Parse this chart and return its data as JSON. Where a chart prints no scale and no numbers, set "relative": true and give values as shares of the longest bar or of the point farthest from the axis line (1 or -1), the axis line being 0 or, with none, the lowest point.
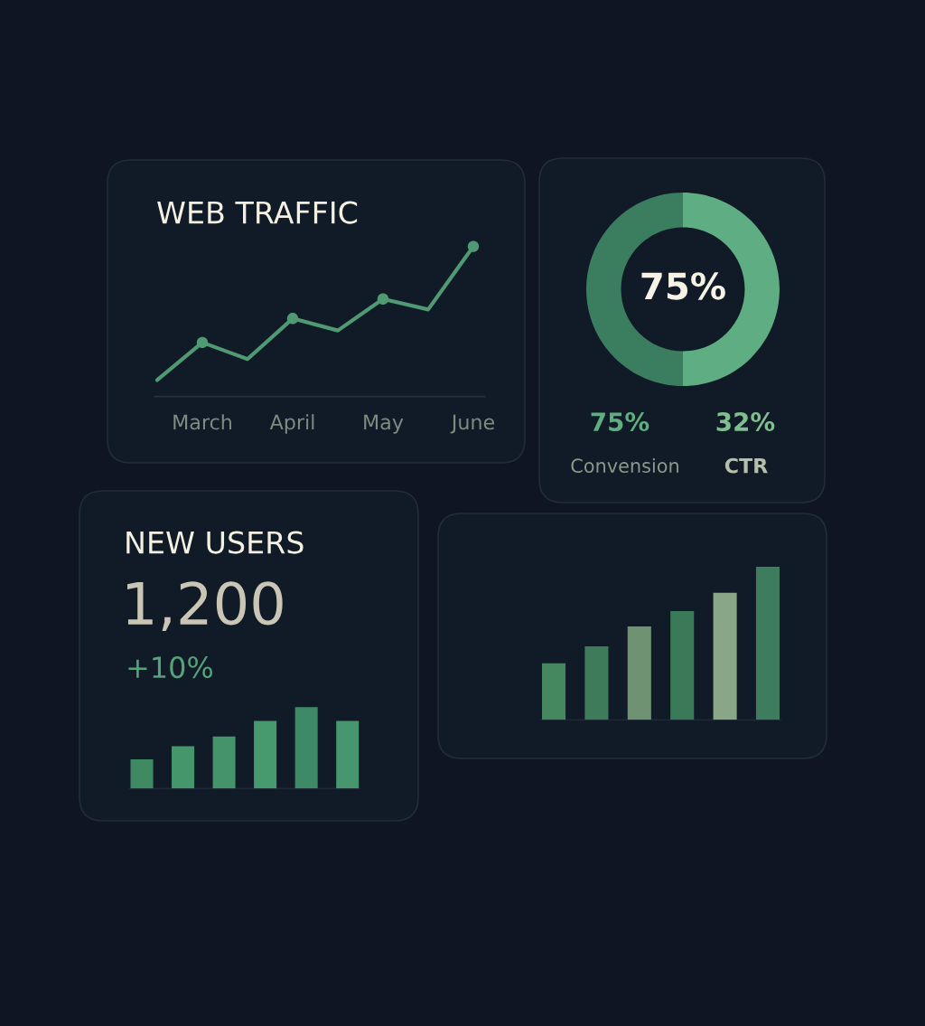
{
  "chart_data": [
    {
      "type": "line",
      "title": "WEB TRAFFIC",
      "relative": true,
      "tick_labels": "x",
      "categories": [
        null,
        "March",
        null,
        "April",
        null,
        "May",
        null,
        "June"
      ],
      "series": [
        {
          "type": "line",
          "color": "#4f9a72",
          "line_style": "solid",
          "values": [
            0.11,
            0.36,
            0.25,
            0.52,
            0.44,
            0.65,
            0.58,
            1
          ]
        },
        {
          "type": "scatter",
          "color": "#4f9a72",
          "marker": "circle",
          "values": [
            null,
            0.36,
            null,
            0.52,
            null,
            0.65,
            null,
            1
          ]
        }
      ]
    },
    {
      "type": "donut",
      "categories": [
        null,
        null
      ],
      "values": [
        50,
        50
      ],
      "colors": [
        "#5fad82",
        "#3a7e5f"
      ],
      "annotations": [
        "75%",
        "75%",
        "32%",
        "Convension",
        "CTR"
      ]
    },
    {
      "type": "bar",
      "title": "NEW USERS",
      "annotations": [
        "1,200",
        "+10%"
      ],
      "relative": true,
      "tick_labels": false,
      "categories": [
        null,
        null,
        null,
        null,
        null,
        null
      ],
      "values": [
        0.36,
        0.52,
        0.64,
        0.83,
        1,
        0.83
      ],
      "colors": [
        "#3f8a63",
        "#46966c",
        "#44936b",
        "#47996e",
        "#3f8a66",
        "#47966e"
      ]
    },
    {
      "type": "bar",
      "relative": true,
      "tick_labels": false,
      "categories": [
        null,
        null,
        null,
        null,
        null,
        null
      ],
      "values": [
        0.37,
        0.48,
        0.61,
        0.71,
        0.83,
        1
      ],
      "colors": [
        "#45875f",
        "#3e7b5a",
        "#6f9272",
        "#3a7a59",
        "#89a686",
        "#3d7c5c"
      ]
    }
  ]
}
